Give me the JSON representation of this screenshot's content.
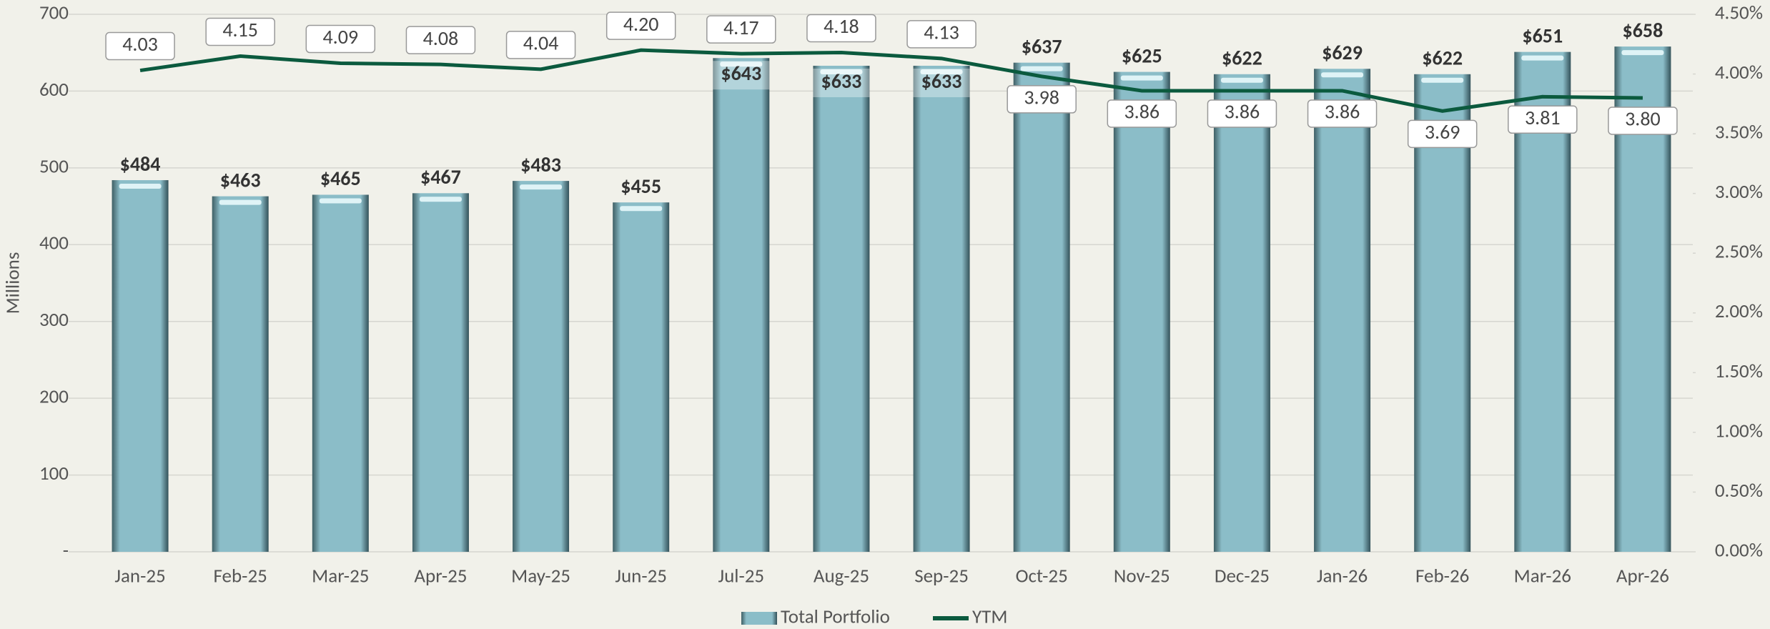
{
  "chart_data": {
    "type": "bar_line",
    "y_axis_label": "Millions",
    "categories": [
      "Jan-25",
      "Feb-25",
      "Mar-25",
      "Apr-25",
      "May-25",
      "Jun-25",
      "Jul-25",
      "Aug-25",
      "Sep-25",
      "Oct-25",
      "Nov-25",
      "Dec-25",
      "Jan-26",
      "Feb-26",
      "Mar-26",
      "Apr-26"
    ],
    "series": [
      {
        "name": "Total Portfolio",
        "color": "#8bbdc8",
        "type": "bar",
        "values": [
          484,
          463,
          465,
          467,
          483,
          455,
          643,
          633,
          633,
          637,
          625,
          622,
          629,
          622,
          651,
          658
        ],
        "value_labels": [
          "$484",
          "$463",
          "$465",
          "$467",
          "$483",
          "$455",
          "$643",
          "$633",
          "$633",
          "$637",
          "$625",
          "$622",
          "$629",
          "$622",
          "$651",
          "$658"
        ]
      },
      {
        "name": "YTM",
        "color": "#0b5a3e",
        "type": "line",
        "axis": "y2",
        "values": [
          4.03,
          4.15,
          4.09,
          4.08,
          4.04,
          4.2,
          4.17,
          4.18,
          4.13,
          3.98,
          3.86,
          3.86,
          3.86,
          3.69,
          3.81,
          3.8
        ],
        "value_labels": [
          "4.03",
          "4.15",
          "4.09",
          "4.08",
          "4.04",
          "4.20",
          "4.17",
          "4.18",
          "4.13",
          "3.98",
          "3.86",
          "3.86",
          "3.86",
          "3.69",
          "3.81",
          "3.80"
        ]
      }
    ],
    "ylim": [
      0,
      700
    ],
    "yticks": [
      {
        "value": 0,
        "label": "-"
      },
      100,
      200,
      300,
      400,
      500,
      600,
      700
    ],
    "y2lim": [
      0,
      4.5
    ],
    "y2ticks": [
      {
        "value": 0,
        "label": "0.00%"
      },
      {
        "value": 0.5,
        "label": "0.50%"
      },
      {
        "value": 1,
        "label": "1.00%"
      },
      {
        "value": 1.5,
        "label": "1.50%"
      },
      {
        "value": 2,
        "label": "2.00%"
      },
      {
        "value": 2.5,
        "label": "2.50%"
      },
      {
        "value": 3,
        "label": "3.00%"
      },
      {
        "value": 3.5,
        "label": "3.50%"
      },
      {
        "value": 4,
        "label": "4.00%"
      },
      {
        "value": 4.5,
        "label": "4.50%"
      }
    ],
    "grid": true,
    "legend": "bottom"
  }
}
